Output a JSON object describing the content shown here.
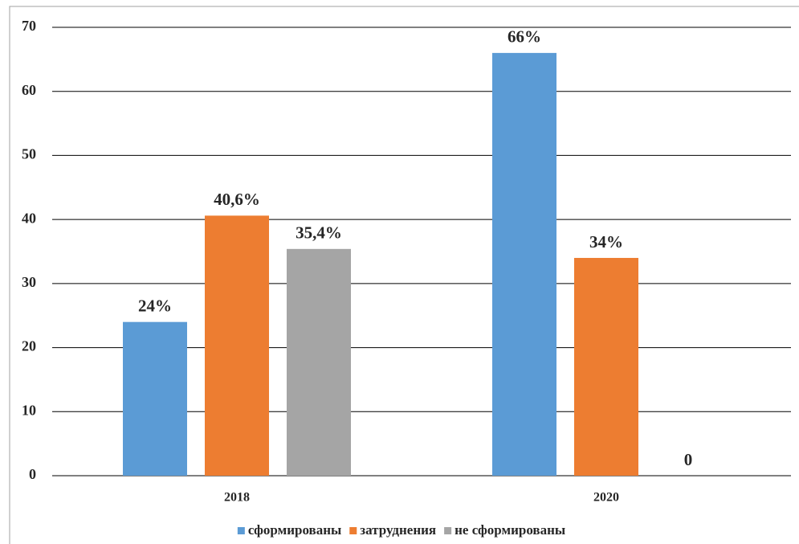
{
  "chart_data": {
    "type": "bar",
    "categories": [
      "2018",
      "2020"
    ],
    "series": [
      {
        "name": "сформированы",
        "color": "#5b9bd5",
        "values": [
          24,
          66
        ],
        "value_labels": [
          "24%",
          "66%"
        ]
      },
      {
        "name": "затруднения",
        "color": "#ed7d31",
        "values": [
          40.6,
          34
        ],
        "value_labels": [
          "40,6%",
          "34%"
        ]
      },
      {
        "name": "не сформированы",
        "color": "#a5a5a5",
        "values": [
          35.4,
          0
        ],
        "value_labels": [
          "35,4%",
          "0"
        ]
      }
    ],
    "ylim": [
      0,
      70
    ],
    "yticks": [
      0,
      10,
      20,
      30,
      40,
      50,
      60,
      70
    ],
    "grid": true,
    "legend": "bottom"
  }
}
